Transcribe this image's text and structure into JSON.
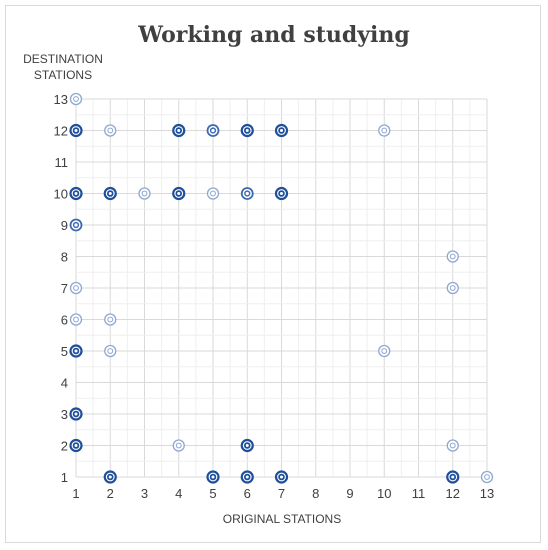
{
  "chart_data": {
    "type": "scatter",
    "title": "Working and studying",
    "xlabel": "ORIGINAL STATIONS",
    "ylabel_lines": [
      "DESTINATION",
      "STATIONS"
    ],
    "x_ticks": [
      "1",
      "2",
      "3",
      "4",
      "5",
      "6",
      "7",
      "8",
      "9",
      "10",
      "11",
      "12",
      "13"
    ],
    "y_ticks": [
      "1",
      "2",
      "3",
      "4",
      "5",
      "6",
      "7",
      "8",
      "9",
      "10",
      "11",
      "12",
      "13"
    ],
    "xlim": [
      1,
      13
    ],
    "ylim": [
      1,
      13
    ],
    "grid": true,
    "legend": "none",
    "colors": {
      "dark": "#1f4e9a",
      "light": "#8fa8cf",
      "grid": "#e6e6e6"
    },
    "points": [
      {
        "x": 1,
        "y": 13,
        "shade": "light"
      },
      {
        "x": 1,
        "y": 12,
        "shade": "dark"
      },
      {
        "x": 2,
        "y": 12,
        "shade": "light"
      },
      {
        "x": 4,
        "y": 12,
        "shade": "dark"
      },
      {
        "x": 5,
        "y": 12,
        "shade": "mid"
      },
      {
        "x": 6,
        "y": 12,
        "shade": "dark"
      },
      {
        "x": 7,
        "y": 12,
        "shade": "dark"
      },
      {
        "x": 10,
        "y": 12,
        "shade": "light"
      },
      {
        "x": 1,
        "y": 10,
        "shade": "dark"
      },
      {
        "x": 2,
        "y": 10,
        "shade": "dark"
      },
      {
        "x": 3,
        "y": 10,
        "shade": "light"
      },
      {
        "x": 4,
        "y": 10,
        "shade": "dark"
      },
      {
        "x": 5,
        "y": 10,
        "shade": "light"
      },
      {
        "x": 6,
        "y": 10,
        "shade": "mid"
      },
      {
        "x": 7,
        "y": 10,
        "shade": "dark"
      },
      {
        "x": 1,
        "y": 9,
        "shade": "mid"
      },
      {
        "x": 12,
        "y": 8,
        "shade": "light"
      },
      {
        "x": 1,
        "y": 7,
        "shade": "light"
      },
      {
        "x": 12,
        "y": 7,
        "shade": "light"
      },
      {
        "x": 1,
        "y": 6,
        "shade": "light"
      },
      {
        "x": 2,
        "y": 6,
        "shade": "light"
      },
      {
        "x": 1,
        "y": 5,
        "shade": "dark"
      },
      {
        "x": 2,
        "y": 5,
        "shade": "light"
      },
      {
        "x": 10,
        "y": 5,
        "shade": "light"
      },
      {
        "x": 1,
        "y": 3,
        "shade": "dark"
      },
      {
        "x": 1,
        "y": 2,
        "shade": "dark"
      },
      {
        "x": 4,
        "y": 2,
        "shade": "light"
      },
      {
        "x": 6,
        "y": 2,
        "shade": "dark"
      },
      {
        "x": 12,
        "y": 2,
        "shade": "light"
      },
      {
        "x": 2,
        "y": 1,
        "shade": "dark"
      },
      {
        "x": 5,
        "y": 1,
        "shade": "dark"
      },
      {
        "x": 6,
        "y": 1,
        "shade": "dark"
      },
      {
        "x": 7,
        "y": 1,
        "shade": "dark"
      },
      {
        "x": 12,
        "y": 1,
        "shade": "dark"
      },
      {
        "x": 13,
        "y": 1,
        "shade": "light"
      }
    ]
  }
}
